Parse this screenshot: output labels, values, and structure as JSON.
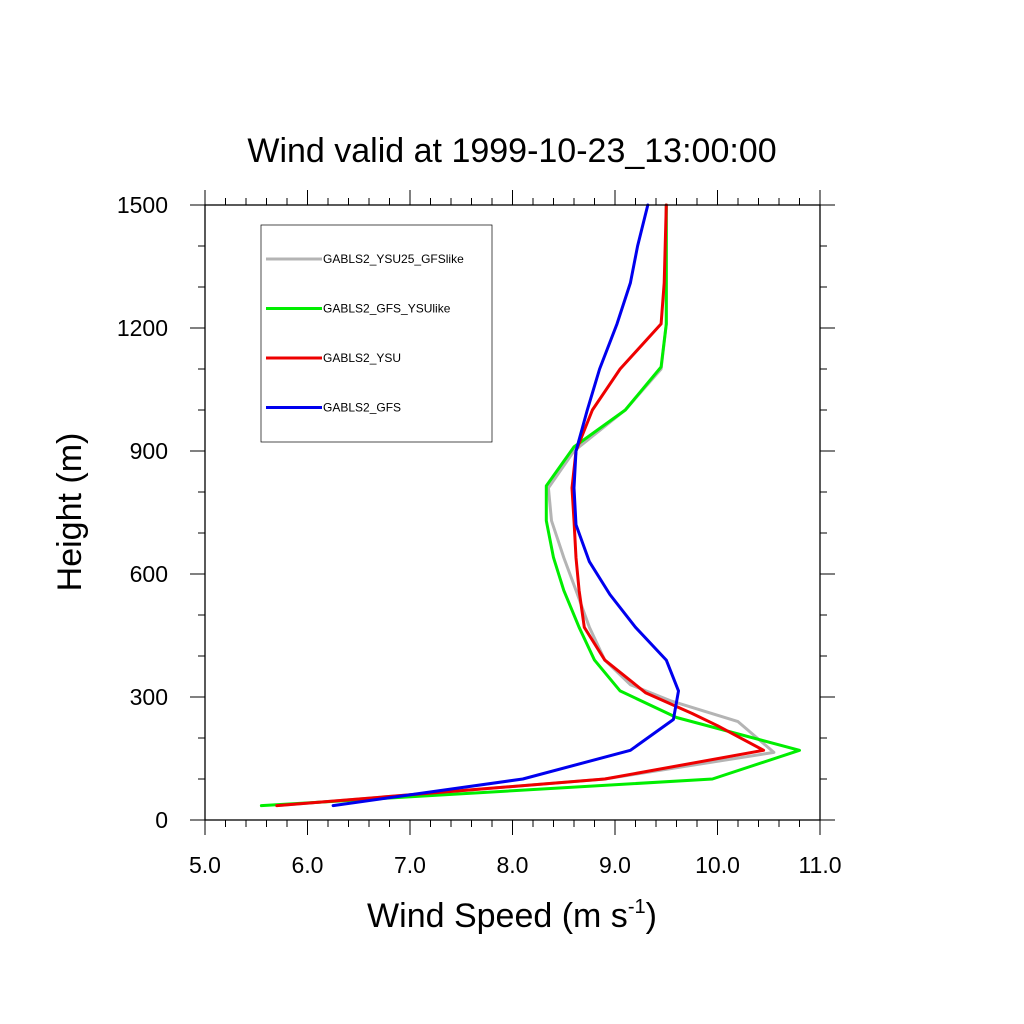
{
  "chart_data": {
    "type": "line",
    "title": "Wind valid at 1999-10-23_13:00:00",
    "xlabel": "Wind Speed (m s",
    "xlabel_sup": "-1",
    "xlabel_close": ")",
    "ylabel": "Height (m)",
    "xlim": [
      5.0,
      11.0
    ],
    "ylim": [
      0,
      1500
    ],
    "xticks": [
      5.0,
      6.0,
      7.0,
      8.0,
      9.0,
      10.0,
      11.0
    ],
    "xtick_labels": [
      "5.0",
      "6.0",
      "7.0",
      "8.0",
      "9.0",
      "10.0",
      "11.0"
    ],
    "yticks": [
      0,
      300,
      600,
      900,
      1200,
      1500
    ],
    "ytick_labels": [
      "0",
      "300",
      "600",
      "900",
      "1200",
      "1500"
    ],
    "legend_position": "top-left",
    "grid": false,
    "series": [
      {
        "name": "GABLS2_YSU25_GFSlike",
        "color": "#b4b4b4",
        "points": [
          [
            5.7,
            35
          ],
          [
            8.9,
            100
          ],
          [
            10.55,
            165
          ],
          [
            10.2,
            240
          ],
          [
            9.55,
            290
          ],
          [
            9.15,
            330
          ],
          [
            8.9,
            390
          ],
          [
            8.75,
            470
          ],
          [
            8.62,
            560
          ],
          [
            8.5,
            640
          ],
          [
            8.38,
            730
          ],
          [
            8.35,
            810
          ],
          [
            8.6,
            900
          ],
          [
            9.1,
            1000
          ],
          [
            9.45,
            1100
          ],
          [
            9.5,
            1210
          ],
          [
            9.5,
            1310
          ],
          [
            9.5,
            1500
          ]
        ]
      },
      {
        "name": "GABLS2_GFS_YSUlike",
        "color": "#00ee00",
        "points": [
          [
            5.55,
            35
          ],
          [
            9.95,
            100
          ],
          [
            10.8,
            170
          ],
          [
            9.6,
            250
          ],
          [
            9.05,
            315
          ],
          [
            8.8,
            390
          ],
          [
            8.65,
            470
          ],
          [
            8.5,
            560
          ],
          [
            8.4,
            640
          ],
          [
            8.33,
            730
          ],
          [
            8.33,
            815
          ],
          [
            8.6,
            910
          ],
          [
            9.1,
            1000
          ],
          [
            9.45,
            1105
          ],
          [
            9.5,
            1210
          ],
          [
            9.5,
            1310
          ],
          [
            9.5,
            1500
          ]
        ]
      },
      {
        "name": "GABLS2_YSU",
        "color": "#ee0000",
        "points": [
          [
            5.7,
            35
          ],
          [
            8.9,
            100
          ],
          [
            10.45,
            170
          ],
          [
            10.0,
            230
          ],
          [
            9.75,
            260
          ],
          [
            9.3,
            310
          ],
          [
            8.9,
            390
          ],
          [
            8.7,
            470
          ],
          [
            8.65,
            560
          ],
          [
            8.62,
            640
          ],
          [
            8.6,
            730
          ],
          [
            8.58,
            810
          ],
          [
            8.62,
            900
          ],
          [
            8.78,
            1000
          ],
          [
            9.05,
            1100
          ],
          [
            9.45,
            1210
          ],
          [
            9.48,
            1310
          ],
          [
            9.5,
            1500
          ]
        ]
      },
      {
        "name": "GABLS2_GFS",
        "color": "#0000ee",
        "points": [
          [
            6.25,
            35
          ],
          [
            8.1,
            100
          ],
          [
            9.15,
            170
          ],
          [
            9.57,
            245
          ],
          [
            9.62,
            315
          ],
          [
            9.5,
            390
          ],
          [
            9.2,
            470
          ],
          [
            8.95,
            550
          ],
          [
            8.75,
            630
          ],
          [
            8.62,
            720
          ],
          [
            8.6,
            810
          ],
          [
            8.62,
            900
          ],
          [
            8.73,
            1000
          ],
          [
            8.85,
            1100
          ],
          [
            9.02,
            1210
          ],
          [
            9.15,
            1310
          ],
          [
            9.22,
            1400
          ],
          [
            9.32,
            1500
          ]
        ]
      }
    ]
  }
}
